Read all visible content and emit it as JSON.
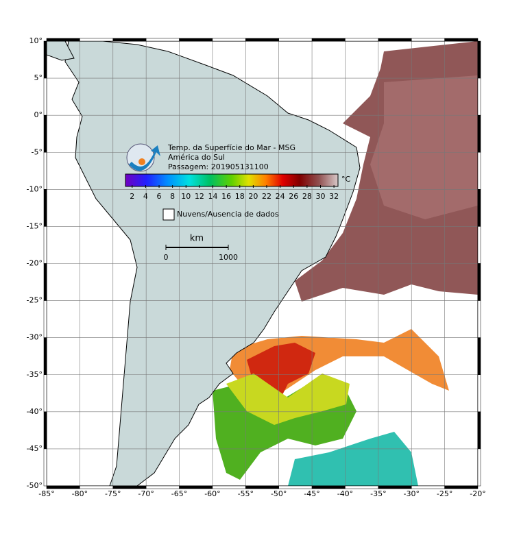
{
  "map": {
    "title_lines": [
      "Temp. da Superfície do Mar - MSG",
      "América do Sul",
      "Passagem: 201905131100"
    ],
    "xlim": [
      -85,
      -20
    ],
    "ylim": [
      -50,
      10
    ],
    "xticks": [
      {
        "value": -85,
        "label": "-85°"
      },
      {
        "value": -80,
        "label": "-80°"
      },
      {
        "value": -75,
        "label": "-75°"
      },
      {
        "value": -70,
        "label": "-70°"
      },
      {
        "value": -65,
        "label": "-65°"
      },
      {
        "value": -60,
        "label": "-60°"
      },
      {
        "value": -55,
        "label": "-55°"
      },
      {
        "value": -50,
        "label": "-50°"
      },
      {
        "value": -45,
        "label": "-45°"
      },
      {
        "value": -40,
        "label": "-40°"
      },
      {
        "value": -35,
        "label": "-35°"
      },
      {
        "value": -30,
        "label": "-30°"
      },
      {
        "value": -25,
        "label": "-25°"
      },
      {
        "value": -20,
        "label": "-20°"
      }
    ],
    "yticks": [
      {
        "value": 10,
        "label": "10°"
      },
      {
        "value": 5,
        "label": "5°"
      },
      {
        "value": 0,
        "label": "0°"
      },
      {
        "value": -5,
        "label": "-5°"
      },
      {
        "value": -10,
        "label": "-10°"
      },
      {
        "value": -15,
        "label": "-15°"
      },
      {
        "value": -20,
        "label": "-20°"
      },
      {
        "value": -25,
        "label": "-25°"
      },
      {
        "value": -30,
        "label": "-30°"
      },
      {
        "value": -35,
        "label": "-35°"
      },
      {
        "value": -40,
        "label": "-40°"
      },
      {
        "value": -45,
        "label": "-45°"
      },
      {
        "value": -50,
        "label": "-50°"
      }
    ],
    "colorbar": {
      "unit": "°C",
      "lim": [
        1,
        32.6
      ],
      "ticks": [
        2,
        4,
        6,
        8,
        10,
        12,
        14,
        16,
        18,
        20,
        22,
        24,
        26,
        28,
        30,
        32
      ]
    },
    "legend": "Nuvens/Ausencia de dados",
    "scale": {
      "unit": "km",
      "ticks": [
        0,
        1000
      ]
    }
  }
}
